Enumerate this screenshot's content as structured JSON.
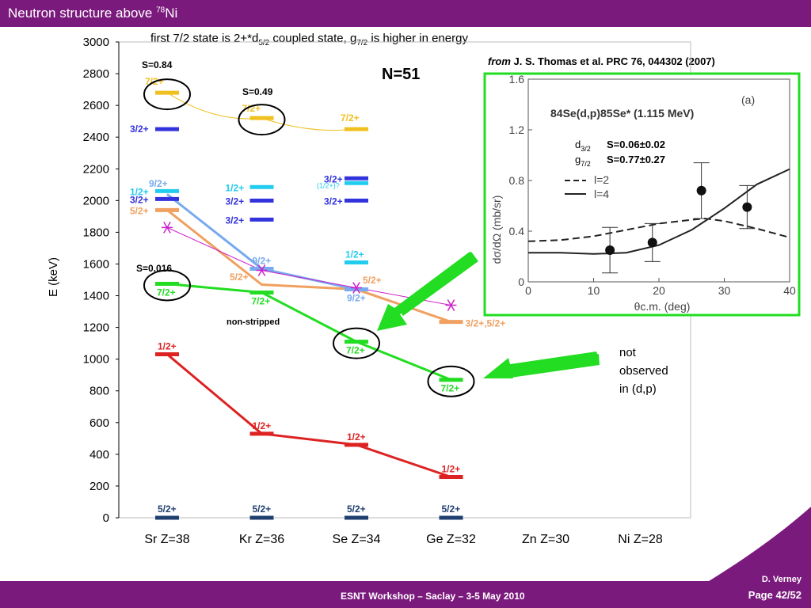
{
  "slide": {
    "title": "Neutron structure above ",
    "title_sup": "78",
    "title_tail": "Ni",
    "note_top_a": "first 7/2 state is 2+*d",
    "note_top_sub1": "5/2",
    "note_top_b": " coupled state, g",
    "note_top_sub2": "7/2",
    "note_top_c": " is higher in energy",
    "ref_from": "from",
    "ref_rest": " J. S. Thomas et al. PRC 76, 044302 (2007)",
    "not_observed": "not\nobserved\nin (d,p)",
    "footer_center": "ESNT Workshop –   Saclay –   3-5 May 2010",
    "footer_author": "D. Verney",
    "footer_page": "Page 42/52",
    "colors": {
      "bar": "#7b1a7d",
      "green": "#22dd22",
      "red": "#dd2222",
      "orange": "#f0a060",
      "yellow": "#f0c020",
      "blue": "#3333dd",
      "lightblue": "#77aaee",
      "cyan": "#22ccee",
      "navy": "#1f3f6f",
      "magenta": "#cc22cc"
    }
  },
  "chart_data": [
    {
      "type": "level-scheme",
      "title": "N=51",
      "ylabel": "E (keV)",
      "ylim": [
        0,
        3000
      ],
      "yticks": [
        "0",
        "200",
        "400",
        "600",
        "800",
        "1000",
        "1200",
        "1400",
        "1600",
        "1800",
        "2000",
        "2200",
        "2400",
        "2600",
        "2800",
        "3000"
      ],
      "categories": [
        "Sr Z=38",
        "Kr Z=36",
        "Se Z=34",
        "Ge Z=32",
        "Zn Z=30",
        "Ni Z=28"
      ],
      "levels": [
        {
          "cat": 0,
          "e": 0,
          "label": "5/2+",
          "color": "navy"
        },
        {
          "cat": 1,
          "e": 0,
          "label": "5/2+",
          "color": "navy"
        },
        {
          "cat": 2,
          "e": 0,
          "label": "5/2+",
          "color": "navy"
        },
        {
          "cat": 3,
          "e": 0,
          "label": "5/2+",
          "color": "navy"
        },
        {
          "cat": 0,
          "e": 1031,
          "label": "1/2+",
          "color": "red"
        },
        {
          "cat": 1,
          "e": 530,
          "label": "1/2+",
          "color": "red"
        },
        {
          "cat": 2,
          "e": 460,
          "label": "1/2+",
          "color": "red"
        },
        {
          "cat": 3,
          "e": 257,
          "label": "1/2+",
          "color": "red"
        },
        {
          "cat": 0,
          "e": 1475,
          "label": "7/2+",
          "color": "green"
        },
        {
          "cat": 1,
          "e": 1420,
          "label": "7/2+",
          "color": "green"
        },
        {
          "cat": 2,
          "e": 1110,
          "label": "7/2+",
          "color": "green"
        },
        {
          "cat": 3,
          "e": 870,
          "label": "7/2+",
          "color": "green"
        },
        {
          "cat": 0,
          "e": 2680,
          "label": "7/2+",
          "color": "yellow"
        },
        {
          "cat": 1,
          "e": 2520,
          "label": "7/2+",
          "color": "yellow"
        },
        {
          "cat": 2,
          "e": 2450,
          "label": "7/2+",
          "color": "yellow"
        },
        {
          "cat": 0,
          "e": 2450,
          "label": "3/2+",
          "color": "blue"
        },
        {
          "cat": 0,
          "e": 2060,
          "label": "1/2+",
          "color": "cyan"
        },
        {
          "cat": 0,
          "e": 2010,
          "label": "3/2+",
          "color": "blue"
        },
        {
          "cat": 0,
          "e": 1940,
          "label": "5/2+",
          "color": "orange"
        },
        {
          "cat": 1,
          "e": 2085,
          "label": "1/2+",
          "color": "cyan"
        },
        {
          "cat": 1,
          "e": 2000,
          "label": "3/2+",
          "color": "blue"
        },
        {
          "cat": 1,
          "e": 1880,
          "label": "3/2+",
          "color": "blue"
        },
        {
          "cat": 1,
          "e": 1570,
          "label": "9/2+",
          "color": "lightblue"
        },
        {
          "cat": 2,
          "e": 2140,
          "label": "3/2+",
          "color": "blue"
        },
        {
          "cat": 2,
          "e": 2110,
          "label": "(1/2+)?",
          "color": "cyan"
        },
        {
          "cat": 2,
          "e": 2000,
          "label": "3/2+",
          "color": "blue"
        },
        {
          "cat": 2,
          "e": 1610,
          "label": "1/2+",
          "color": "cyan"
        },
        {
          "cat": 2,
          "e": 1440,
          "label": "9/2+",
          "color": "lightblue"
        },
        {
          "cat": 3,
          "e": 1235,
          "label": "3/2+,5/2+",
          "color": "orange"
        }
      ],
      "lines": [
        {
          "color": "green",
          "points": [
            [
              0,
              1475
            ],
            [
              1,
              1420
            ],
            [
              2,
              1110
            ],
            [
              3,
              870
            ]
          ]
        },
        {
          "color": "red",
          "points": [
            [
              0,
              1031
            ],
            [
              1,
              530
            ],
            [
              2,
              460
            ],
            [
              3,
              257
            ]
          ]
        },
        {
          "color": "yellow",
          "points": [
            [
              0,
              2680
            ],
            [
              1,
              2520
            ],
            [
              2,
              2450
            ]
          ],
          "curve": true
        },
        {
          "color": "lightblue",
          "points": [
            [
              0,
              2040
            ],
            [
              1,
              1570
            ],
            [
              2,
              1440
            ]
          ]
        },
        {
          "color": "orange",
          "points": [
            [
              0,
              1940
            ],
            [
              1,
              1470
            ],
            [
              2,
              1440
            ],
            [
              3,
              1235
            ]
          ]
        },
        {
          "color": "magenta",
          "points": [
            [
              0,
              1830
            ],
            [
              1,
              1560
            ],
            [
              2,
              1450
            ],
            [
              3,
              1340
            ]
          ],
          "thin": true
        }
      ],
      "stars": [
        [
          0,
          1830
        ],
        [
          1,
          1560
        ],
        [
          2,
          1450
        ],
        [
          3,
          1340
        ]
      ],
      "circled": [
        [
          0,
          2680
        ],
        [
          1,
          2520
        ],
        [
          0,
          1475
        ],
        [
          2,
          1110
        ],
        [
          3,
          870
        ]
      ],
      "annotations": {
        "s084": "S=0.84",
        "s049": "S=0.49",
        "s0016": "S=0.016",
        "non_stripped": "non-stripped",
        "sr_92": "9/2+",
        "kr_52": "5/2+",
        "se_52": "5/2+"
      }
    },
    {
      "type": "scatter+line",
      "title": "(a)",
      "reaction": "84Se(d,p)85Se* (1.115 MeV)",
      "xlabel": "θc.m. (deg)",
      "ylabel": "dσ/dΩ (mb/sr)",
      "xlim": [
        0,
        40
      ],
      "ylim": [
        0,
        1.6
      ],
      "xticks": [
        "0",
        "10",
        "20",
        "30",
        "40"
      ],
      "yticks": [
        "0",
        "0.4",
        "0.8",
        "1.2",
        "1.6"
      ],
      "points": [
        {
          "x": 12.5,
          "y": 0.25,
          "err": 0.18
        },
        {
          "x": 19,
          "y": 0.31,
          "err": 0.15
        },
        {
          "x": 26.5,
          "y": 0.72,
          "err": 0.22
        },
        {
          "x": 33.5,
          "y": 0.59,
          "err": 0.17
        }
      ],
      "series": [
        {
          "name": "l=2",
          "style": "dashed",
          "x": [
            0,
            5,
            10,
            15,
            20,
            25,
            27,
            30,
            35,
            40
          ],
          "y": [
            0.32,
            0.33,
            0.36,
            0.41,
            0.46,
            0.49,
            0.5,
            0.48,
            0.42,
            0.35
          ]
        },
        {
          "name": "l=4",
          "style": "solid",
          "x": [
            0,
            5,
            10,
            15,
            20,
            25,
            30,
            35,
            40
          ],
          "y": [
            0.23,
            0.23,
            0.22,
            0.23,
            0.29,
            0.41,
            0.58,
            0.77,
            0.89
          ]
        }
      ],
      "legend_d": "d",
      "legend_d_sub": "3/2",
      "legend_d_val": "S=0.06±0.02",
      "legend_g": "g",
      "legend_g_sub": "7/2",
      "legend_g_val": "S=0.77±0.27"
    }
  ]
}
